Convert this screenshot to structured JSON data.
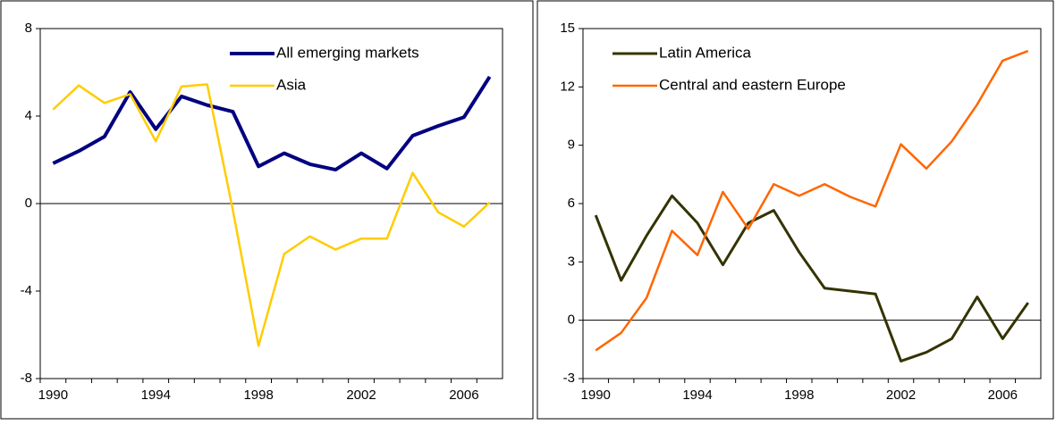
{
  "chart_data": [
    {
      "type": "line",
      "x": [
        1990,
        1991,
        1992,
        1993,
        1994,
        1995,
        1996,
        1997,
        1998,
        1999,
        2000,
        2001,
        2002,
        2003,
        2004,
        2005,
        2006,
        2007
      ],
      "xlim": [
        1989.5,
        2007.5
      ],
      "xticks": [
        1990,
        1994,
        1998,
        2002,
        2006
      ],
      "ylim": [
        -8,
        8
      ],
      "yticks": [
        -8,
        -4,
        0,
        4,
        8
      ],
      "legend": "upper right",
      "series": [
        {
          "name": "All emerging markets",
          "color": "#000080",
          "values": [
            1.84,
            2.4,
            3.06,
            5.1,
            3.4,
            4.9,
            4.5,
            4.2,
            1.7,
            2.3,
            1.8,
            1.55,
            2.3,
            1.6,
            3.1,
            3.55,
            3.95,
            5.8
          ]
        },
        {
          "name": "Asia",
          "color": "#ffcc00",
          "values": [
            4.3,
            5.4,
            4.6,
            5.0,
            2.85,
            5.35,
            5.45,
            -0.3,
            -6.5,
            -2.3,
            -1.5,
            -2.1,
            -1.6,
            -1.6,
            1.4,
            -0.4,
            -1.05,
            0.05
          ]
        }
      ]
    },
    {
      "type": "line",
      "x": [
        1990,
        1991,
        1992,
        1993,
        1994,
        1995,
        1996,
        1997,
        1998,
        1999,
        2000,
        2001,
        2002,
        2003,
        2004,
        2005,
        2006,
        2007
      ],
      "xlim": [
        1989.5,
        2007.5
      ],
      "xticks": [
        1990,
        1994,
        1998,
        2002,
        2006
      ],
      "ylim": [
        -3,
        15
      ],
      "yticks": [
        -3,
        0,
        3,
        6,
        9,
        12,
        15
      ],
      "legend": "upper left",
      "series": [
        {
          "name": "Latin America",
          "color": "#333300",
          "values": [
            5.4,
            2.05,
            4.35,
            6.4,
            5.0,
            2.85,
            5.0,
            5.65,
            3.5,
            1.65,
            1.5,
            1.35,
            -2.1,
            -1.65,
            -0.95,
            1.2,
            -0.95,
            0.9
          ]
        },
        {
          "name": "Central and eastern Europe",
          "color": "#ff6600",
          "values": [
            -1.55,
            -0.65,
            1.15,
            4.6,
            3.35,
            6.6,
            4.7,
            7.0,
            6.4,
            7.0,
            6.35,
            5.85,
            9.05,
            7.8,
            9.2,
            11.1,
            13.35,
            13.85
          ]
        }
      ]
    }
  ]
}
